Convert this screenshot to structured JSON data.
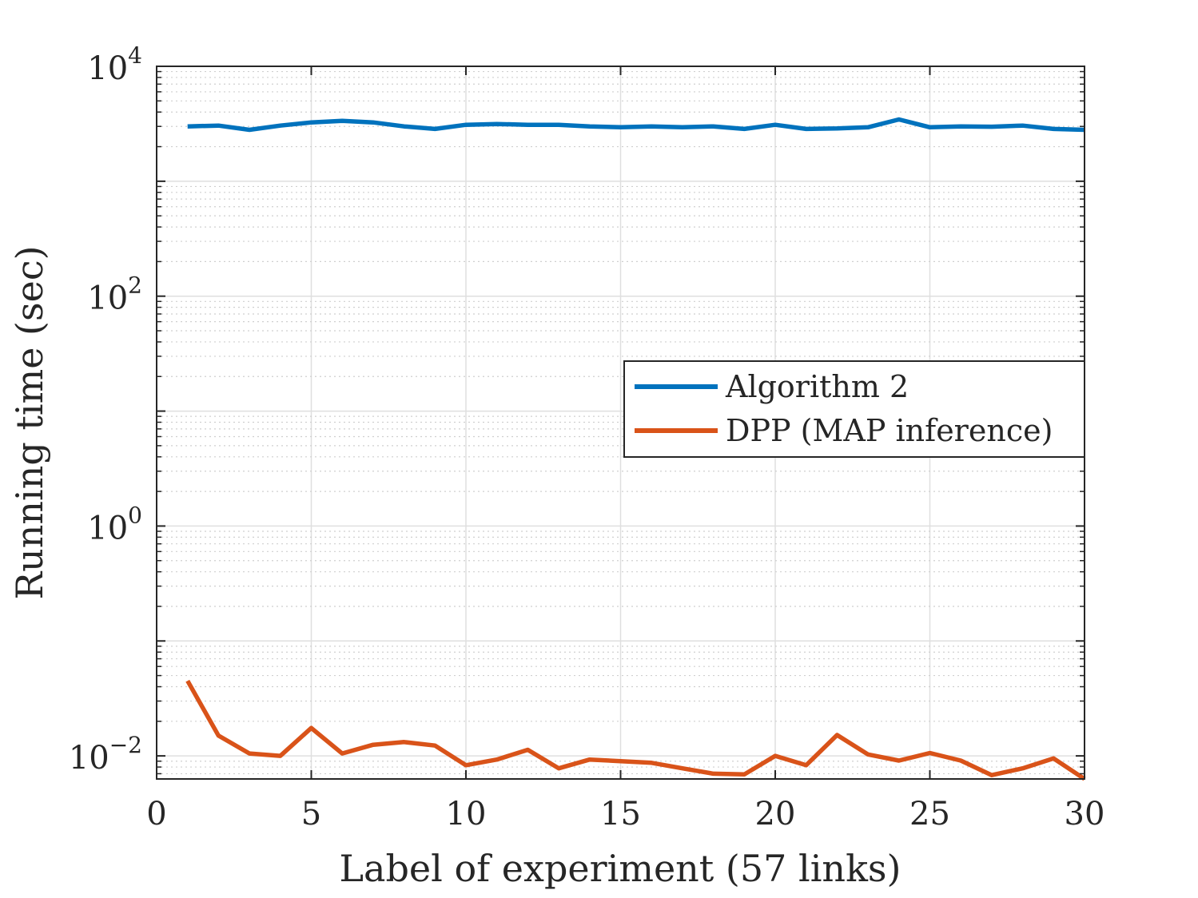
{
  "chart_data": {
    "type": "line",
    "xlabel": "Label of experiment (57 links)",
    "ylabel": "Running time (sec)",
    "xlim": [
      0,
      30
    ],
    "ylim": [
      0.0063,
      10000
    ],
    "y_scale": "log",
    "grid": true,
    "minor_grid": true,
    "legend_position": "right-middle",
    "x_ticks": [
      0,
      5,
      10,
      15,
      20,
      25,
      30
    ],
    "x_tick_labels": [
      "0",
      "5",
      "10",
      "15",
      "20",
      "25",
      "30"
    ],
    "y_ticks": [
      0.01,
      1,
      100,
      10000
    ],
    "y_tick_labels": [
      {
        "base": "10",
        "exp": "−2"
      },
      {
        "base": "10",
        "exp": "0"
      },
      {
        "base": "10",
        "exp": "2"
      },
      {
        "base": "10",
        "exp": "4"
      }
    ],
    "x": [
      1,
      2,
      3,
      4,
      5,
      6,
      7,
      8,
      9,
      10,
      11,
      12,
      13,
      14,
      15,
      16,
      17,
      18,
      19,
      20,
      21,
      22,
      23,
      24,
      25,
      26,
      27,
      28,
      29,
      30
    ],
    "series": [
      {
        "name": "Algorithm 2",
        "color": "#0072BD",
        "values": [
          3000,
          3050,
          2800,
          3050,
          3250,
          3350,
          3250,
          3000,
          2850,
          3100,
          3150,
          3100,
          3100,
          3000,
          2950,
          3000,
          2950,
          3000,
          2850,
          3100,
          2850,
          2880,
          2950,
          3450,
          2950,
          3000,
          2980,
          3050,
          2850,
          2800
        ]
      },
      {
        "name": "DPP (MAP inference)",
        "color": "#D95319",
        "values": [
          0.045,
          0.015,
          0.0105,
          0.01,
          0.0175,
          0.0105,
          0.0125,
          0.0132,
          0.0123,
          0.0083,
          0.0093,
          0.0113,
          0.0078,
          0.0093,
          0.009,
          0.0087,
          0.0078,
          0.007,
          0.0069,
          0.01,
          0.0083,
          0.0152,
          0.0103,
          0.0091,
          0.0106,
          0.0091,
          0.0068,
          0.0078,
          0.0095,
          0.0063
        ]
      }
    ]
  }
}
